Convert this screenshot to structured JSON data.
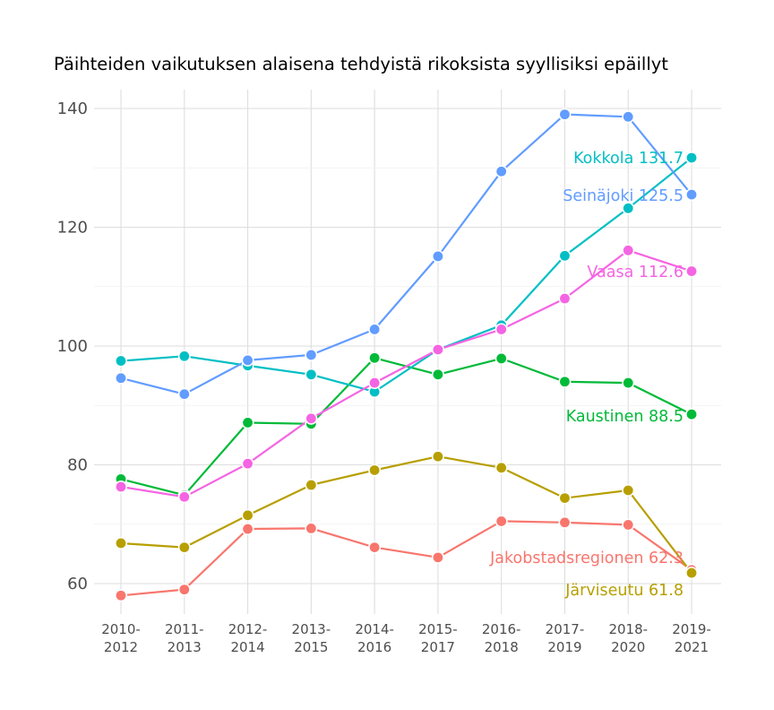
{
  "chart_data": {
    "type": "line",
    "title": "Päihteiden vaikutuksen alaisena tehdyistä rikoksista syyllisiksi epäillyt",
    "xlabel": "",
    "ylabel": "",
    "ylim": [
      54,
      142
    ],
    "yticks": [
      60,
      80,
      100,
      120,
      140
    ],
    "grid": true,
    "legend": "none",
    "categories": [
      [
        "2010-",
        "2012"
      ],
      [
        "2011-",
        "2013"
      ],
      [
        "2012-",
        "2014"
      ],
      [
        "2013-",
        "2015"
      ],
      [
        "2014-",
        "2016"
      ],
      [
        "2015-",
        "2017"
      ],
      [
        "2016-",
        "2018"
      ],
      [
        "2017-",
        "2019"
      ],
      [
        "2018-",
        "2020"
      ],
      [
        "2019-",
        "2021"
      ]
    ],
    "series": [
      {
        "name": "Jakobstadsregionen",
        "color": "#f8766d",
        "end_label": "Jakobstadsregionen 62.3",
        "values": [
          58.0,
          59.0,
          69.2,
          69.3,
          66.1,
          64.4,
          70.5,
          70.3,
          69.9,
          62.3
        ]
      },
      {
        "name": "Järviseutu",
        "color": "#b79f00",
        "end_label": "Järviseutu 61.8",
        "values": [
          66.8,
          66.1,
          71.5,
          76.6,
          79.1,
          81.4,
          79.5,
          74.4,
          75.7,
          61.8
        ]
      },
      {
        "name": "Kaustinen",
        "color": "#00ba38",
        "end_label": "Kaustinen 88.5",
        "values": [
          77.6,
          74.9,
          87.1,
          86.9,
          98.0,
          95.2,
          97.9,
          94.0,
          93.8,
          88.5
        ]
      },
      {
        "name": "Kokkola",
        "color": "#00bfc4",
        "end_label": "Kokkola 131.7",
        "values": [
          97.5,
          98.3,
          96.7,
          95.2,
          92.3,
          99.4,
          103.5,
          115.2,
          123.2,
          131.7
        ]
      },
      {
        "name": "Seinäjoki",
        "color": "#619cff",
        "end_label": "Seinäjoki 125.5",
        "values": [
          94.6,
          91.9,
          97.6,
          98.5,
          102.8,
          115.1,
          129.4,
          139.0,
          138.6,
          125.5
        ]
      },
      {
        "name": "Vaasa",
        "color": "#f564e3",
        "end_label": "Vaasa 112.6",
        "values": [
          76.3,
          74.6,
          80.2,
          87.8,
          93.8,
          99.4,
          102.8,
          108.0,
          116.1,
          112.6
        ]
      }
    ]
  }
}
